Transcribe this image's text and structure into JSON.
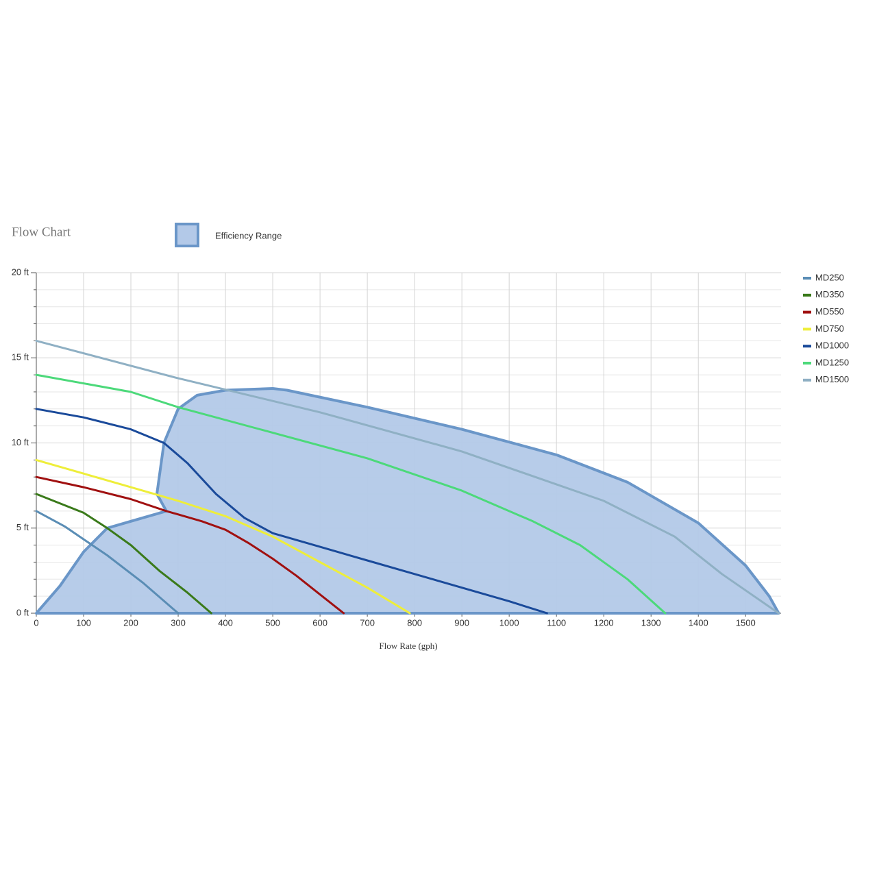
{
  "chart_data": {
    "type": "line",
    "title": "Flow Chart",
    "x_label": "Flow Rate (gph)",
    "xlim": [
      0,
      1575
    ],
    "ylim": [
      0,
      20
    ],
    "xticks": [
      0,
      100,
      200,
      300,
      400,
      500,
      600,
      700,
      800,
      900,
      1000,
      1100,
      1200,
      1300,
      1400,
      1500
    ],
    "yticks": [
      {
        "value": 0,
        "label": "0 ft"
      },
      {
        "value": 5,
        "label": "5 ft"
      },
      {
        "value": 10,
        "label": "10 ft"
      },
      {
        "value": 15,
        "label": "15 ft"
      },
      {
        "value": 20,
        "label": "20 ft"
      }
    ],
    "y_minor_ticks": [
      1,
      2,
      3,
      4,
      6,
      7,
      8,
      9,
      11,
      12,
      13,
      14,
      16,
      17,
      18,
      19
    ],
    "grid": true,
    "legend": "right",
    "efficiency_range": {
      "name": "Efficiency Range",
      "color": "#6a96c8",
      "fill": "#b3c9e8",
      "x": [
        0,
        50,
        100,
        150,
        200,
        275,
        255,
        270,
        300,
        340,
        400,
        500,
        530,
        700,
        900,
        1100,
        1250,
        1400,
        1500,
        1550,
        1570
      ],
      "values": [
        0,
        1.6,
        3.6,
        5,
        5.4,
        6,
        7,
        10,
        12,
        12.8,
        13.1,
        13.2,
        13.1,
        12.1,
        10.8,
        9.3,
        7.7,
        5.3,
        2.8,
        1,
        0
      ]
    },
    "series": [
      {
        "name": "MD250",
        "color": "#5a8db5",
        "x": [
          0,
          60,
          150,
          225,
          300
        ],
        "values": [
          6,
          5.1,
          3.4,
          1.8,
          0
        ]
      },
      {
        "name": "MD350",
        "color": "#3a7a1a",
        "x": [
          0,
          100,
          150,
          200,
          260,
          320,
          370
        ],
        "values": [
          7,
          5.9,
          5,
          4,
          2.5,
          1.2,
          0
        ]
      },
      {
        "name": "MD550",
        "color": "#a01010",
        "x": [
          0,
          100,
          200,
          275,
          350,
          400,
          450,
          500,
          550,
          600,
          650
        ],
        "values": [
          8,
          7.4,
          6.7,
          6,
          5.4,
          4.9,
          4.1,
          3.2,
          2.2,
          1.1,
          0
        ]
      },
      {
        "name": "MD750",
        "color": "#eeee3a",
        "x": [
          0,
          100,
          200,
          300,
          400,
          500,
          600,
          700,
          790
        ],
        "values": [
          9,
          8.2,
          7.4,
          6.6,
          5.7,
          4.5,
          3,
          1.5,
          0
        ]
      },
      {
        "name": "MD1000",
        "color": "#1a4a9a",
        "x": [
          0,
          100,
          200,
          270,
          320,
          380,
          440,
          500,
          600,
          700,
          800,
          900,
          1000,
          1080
        ],
        "values": [
          12,
          11.5,
          10.8,
          10,
          8.8,
          7,
          5.6,
          4.7,
          3.9,
          3.1,
          2.3,
          1.5,
          0.7,
          0
        ]
      },
      {
        "name": "MD1250",
        "color": "#4cd97a",
        "x": [
          0,
          200,
          300,
          500,
          700,
          900,
          1050,
          1150,
          1250,
          1330
        ],
        "values": [
          14,
          13,
          12.1,
          10.6,
          9.1,
          7.2,
          5.4,
          4,
          2,
          0
        ]
      },
      {
        "name": "MD1500",
        "color": "#8fb0c4",
        "x": [
          0,
          300,
          600,
          900,
          1200,
          1350,
          1450,
          1570
        ],
        "values": [
          16,
          13.8,
          11.8,
          9.5,
          6.6,
          4.5,
          2.3,
          0
        ]
      }
    ]
  }
}
